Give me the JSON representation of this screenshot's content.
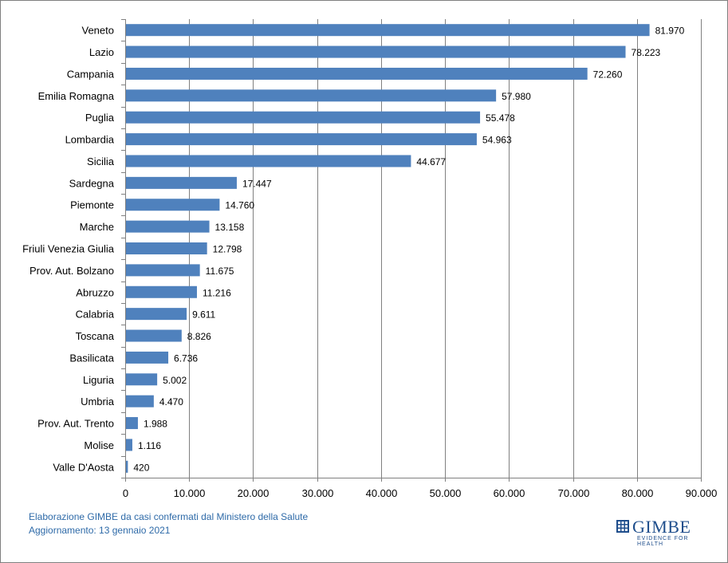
{
  "chart_data": {
    "type": "bar",
    "orientation": "horizontal",
    "categories": [
      "Veneto",
      "Lazio",
      "Campania",
      "Emilia Romagna",
      "Puglia",
      "Lombardia",
      "Sicilia",
      "Sardegna",
      "Piemonte",
      "Marche",
      "Friuli Venezia Giulia",
      "Prov. Aut. Bolzano",
      "Abruzzo",
      "Calabria",
      "Toscana",
      "Basilicata",
      "Liguria",
      "Umbria",
      "Prov. Aut. Trento",
      "Molise",
      "Valle D'Aosta"
    ],
    "values": [
      81970,
      78223,
      72260,
      57980,
      55478,
      54963,
      44677,
      17447,
      14760,
      13158,
      12798,
      11675,
      11216,
      9611,
      8826,
      6736,
      5002,
      4470,
      1988,
      1116,
      420
    ],
    "value_labels": [
      "81.970",
      "78.223",
      "72.260",
      "57.980",
      "55.478",
      "54.963",
      "44.677",
      "17.447",
      "14.760",
      "13.158",
      "12.798",
      "11.675",
      "11.216",
      "9.611",
      "8.826",
      "6.736",
      "5.002",
      "4.470",
      "1.988",
      "1.116",
      "420"
    ],
    "xlim": [
      0,
      90000
    ],
    "x_ticks": [
      0,
      10000,
      20000,
      30000,
      40000,
      50000,
      60000,
      70000,
      80000,
      90000
    ],
    "x_tick_labels": [
      "0",
      "10.000",
      "20.000",
      "30.000",
      "40.000",
      "50.000",
      "60.000",
      "70.000",
      "80.000",
      "90.000"
    ],
    "grid": true,
    "bar_color": "#4f81bd",
    "title": "",
    "xlabel": "",
    "ylabel": ""
  },
  "footer": {
    "line1": "Elaborazione GIMBE da casi confermati dal Ministero della Salute",
    "line2": "Aggiornamento: 13 gennaio 2021"
  },
  "logo": {
    "name": "GIMBE",
    "tagline": "EVIDENCE FOR HEALTH",
    "color": "#1f4e8c"
  }
}
